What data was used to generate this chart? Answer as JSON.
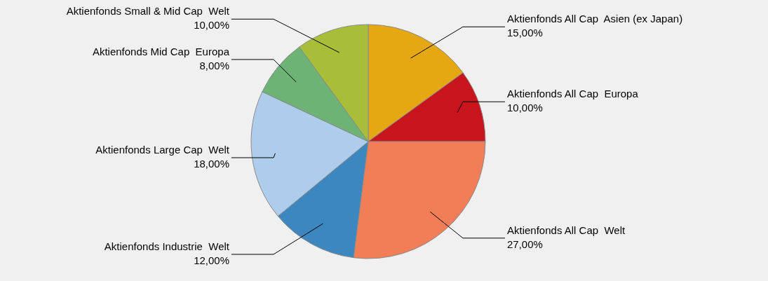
{
  "chart_data": {
    "type": "pie",
    "categories": [
      "Aktienfonds All Cap  Asien (ex Japan)",
      "Aktienfonds All Cap  Europa",
      "Aktienfonds All Cap  Welt",
      "Aktienfonds Industrie  Welt",
      "Aktienfonds Large Cap  Welt",
      "Aktienfonds Mid Cap  Europa",
      "Aktienfonds Small & Mid Cap  Welt"
    ],
    "values": [
      15,
      10,
      27,
      12,
      18,
      8,
      10
    ],
    "colors": [
      "#e6a812",
      "#c8141c",
      "#f27e58",
      "#3d87c0",
      "#aecdec",
      "#6db375",
      "#a8be38"
    ],
    "value_labels": [
      "15,00%",
      "10,00%",
      "27,00%",
      "12,00%",
      "18,00%",
      "8,00%",
      "10,00%"
    ]
  }
}
